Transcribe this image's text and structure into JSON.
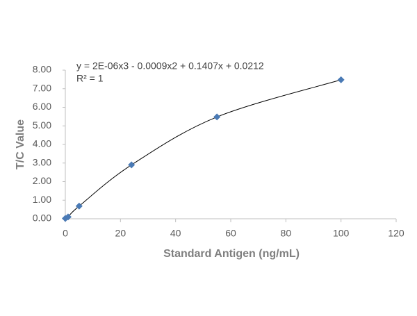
{
  "chart_data": {
    "type": "scatter",
    "x_label": "Standard Antigen (ng/mL)",
    "y_label": "T/C Value",
    "annotations": [
      "y = 2E-06x3 - 0.0009x2 + 0.1407x + 0.0212",
      "R² = 1"
    ],
    "series": [
      {
        "color": "#4a7ab5",
        "x": [
          0,
          1,
          5,
          24,
          55,
          100
        ],
        "values": [
          0.02,
          0.1,
          0.68,
          2.9,
          5.48,
          7.48
        ]
      }
    ],
    "trendline": true,
    "trendline_color": "#000000",
    "xlim": [
      0,
      120
    ],
    "xticks": [
      0,
      20,
      40,
      60,
      80,
      100,
      120
    ],
    "ylim": [
      0,
      8
    ],
    "yticks": [
      {
        "value": 0,
        "label": "0.00"
      },
      {
        "value": 1,
        "label": "1.00"
      },
      {
        "value": 2,
        "label": "2.00"
      },
      {
        "value": 3,
        "label": "3.00"
      },
      {
        "value": 4,
        "label": "4.00"
      },
      {
        "value": 5,
        "label": "5.00"
      },
      {
        "value": 6,
        "label": "6.00"
      },
      {
        "value": 7,
        "label": "7.00"
      },
      {
        "value": 8,
        "label": "8.00"
      }
    ]
  }
}
